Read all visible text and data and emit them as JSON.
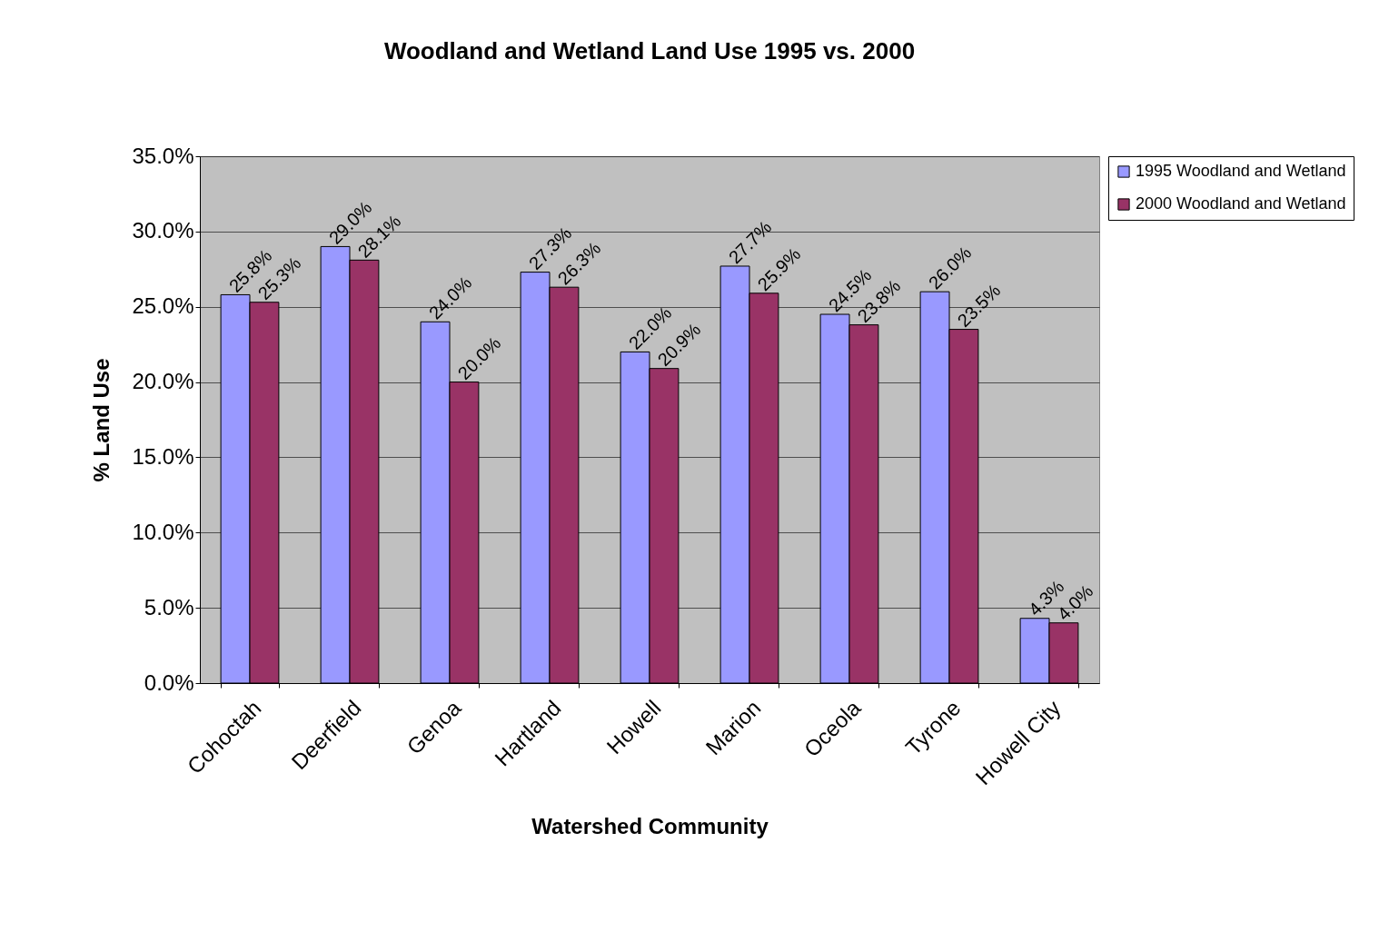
{
  "chart_data": {
    "type": "bar",
    "title": "Woodland and Wetland Land Use 1995 vs. 2000",
    "xlabel": "Watershed Community",
    "ylabel": "% Land Use",
    "categories": [
      "Cohoctah",
      "Deerfield",
      "Genoa",
      "Hartland",
      "Howell",
      "Marion",
      "Oceola",
      "Tyrone",
      "Howell City"
    ],
    "series": [
      {
        "name": "1995 Woodland and Wetland",
        "color": "#9999ff",
        "values": [
          25.8,
          29.0,
          24.0,
          27.3,
          22.0,
          27.7,
          24.5,
          26.0,
          4.3
        ],
        "value_labels": [
          "25.8%",
          "29.0%",
          "24.0%",
          "27.3%",
          "22.0%",
          "27.7%",
          "24.5%",
          "26.0%",
          "4.3%"
        ]
      },
      {
        "name": "2000 Woodland and Wetland",
        "color": "#993366",
        "values": [
          25.3,
          28.1,
          20.0,
          26.3,
          20.9,
          25.9,
          23.8,
          23.5,
          4.0
        ],
        "value_labels": [
          "25.3%",
          "28.1%",
          "20.0%",
          "26.3%",
          "20.9%",
          "25.9%",
          "23.8%",
          "23.5%",
          "4.0%"
        ]
      }
    ],
    "ylim": [
      0,
      35
    ],
    "yticks": [
      {
        "value": 0,
        "label": "0.0%"
      },
      {
        "value": 5,
        "label": "5.0%"
      },
      {
        "value": 10,
        "label": "10.0%"
      },
      {
        "value": 15,
        "label": "15.0%"
      },
      {
        "value": 20,
        "label": "20.0%"
      },
      {
        "value": 25,
        "label": "25.0%"
      },
      {
        "value": 30,
        "label": "30.0%"
      },
      {
        "value": 35,
        "label": "35.0%"
      }
    ],
    "grid": "y",
    "legend": "right"
  }
}
